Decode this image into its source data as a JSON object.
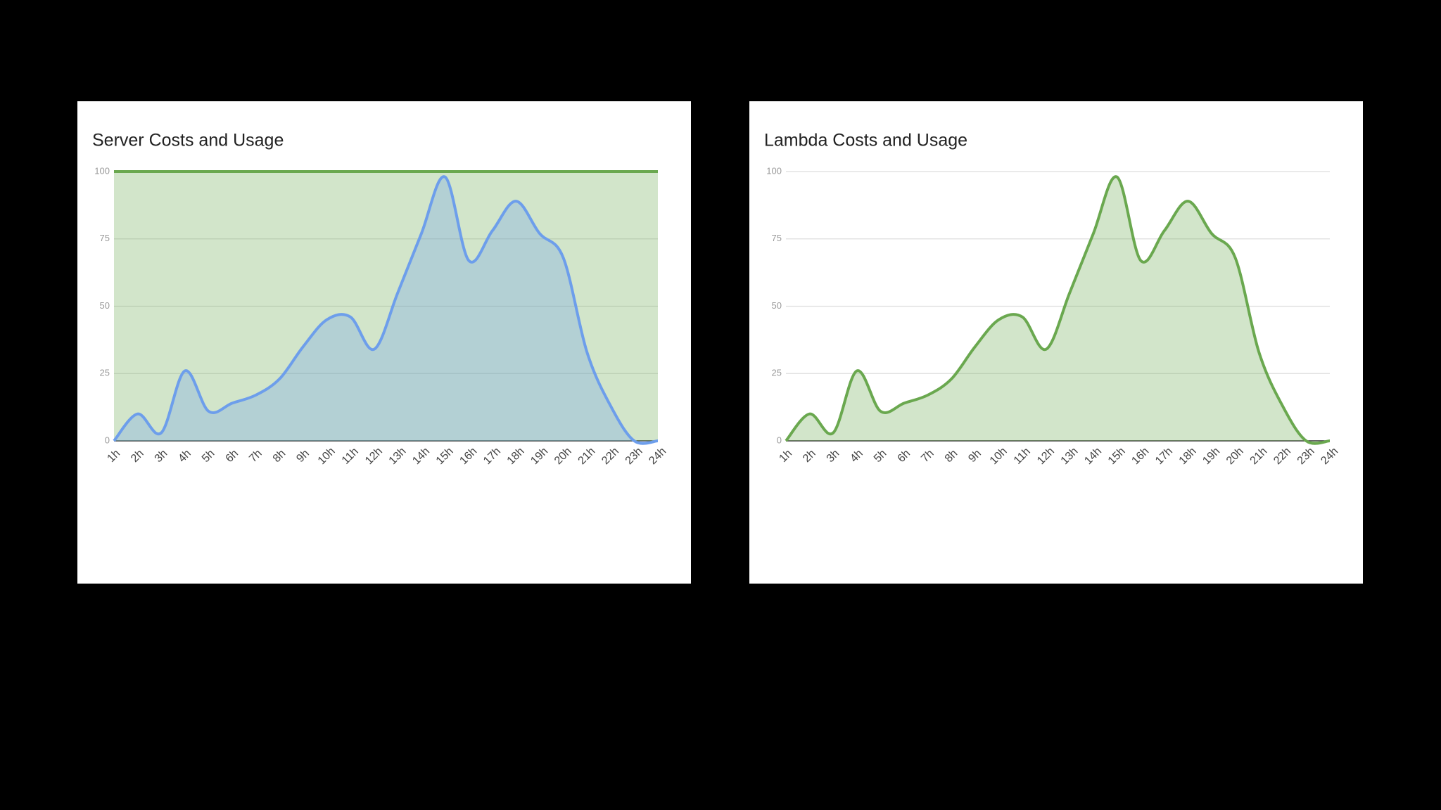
{
  "chart_data": [
    {
      "type": "area",
      "title": "Server Costs and Usage",
      "categories": [
        "1h",
        "2h",
        "3h",
        "4h",
        "5h",
        "6h",
        "7h",
        "8h",
        "9h",
        "10h",
        "11h",
        "12h",
        "13h",
        "14h",
        "15h",
        "16h",
        "17h",
        "18h",
        "19h",
        "20h",
        "21h",
        "22h",
        "23h",
        "24h"
      ],
      "series": [
        {
          "color": "#6aa84f",
          "values": [
            100,
            100,
            100,
            100,
            100,
            100,
            100,
            100,
            100,
            100,
            100,
            100,
            100,
            100,
            100,
            100,
            100,
            100,
            100,
            100,
            100,
            100,
            100,
            100
          ]
        },
        {
          "color": "#6d9eeb",
          "values": [
            0,
            10,
            3,
            26,
            11,
            14,
            17,
            23,
            35,
            45,
            46,
            34,
            55,
            77,
            98,
            67,
            78,
            89,
            77,
            68,
            33,
            13,
            0,
            0
          ]
        }
      ],
      "ylim": [
        0,
        100
      ],
      "yticks": [
        0,
        25,
        50,
        75,
        100
      ],
      "grid": true
    },
    {
      "type": "area",
      "title": "Lambda Costs and Usage",
      "categories": [
        "1h",
        "2h",
        "3h",
        "4h",
        "5h",
        "6h",
        "7h",
        "8h",
        "9h",
        "10h",
        "11h",
        "12h",
        "13h",
        "14h",
        "15h",
        "16h",
        "17h",
        "18h",
        "19h",
        "20h",
        "21h",
        "22h",
        "23h",
        "24h"
      ],
      "series": [
        {
          "color": "#6aa84f",
          "values": [
            0,
            10,
            3,
            26,
            11,
            14,
            17,
            23,
            35,
            45,
            46,
            34,
            55,
            77,
            98,
            67,
            78,
            89,
            77,
            68,
            33,
            13,
            0,
            0
          ]
        }
      ],
      "ylim": [
        0,
        100
      ],
      "yticks": [
        0,
        25,
        50,
        75,
        100
      ],
      "grid": true
    }
  ]
}
